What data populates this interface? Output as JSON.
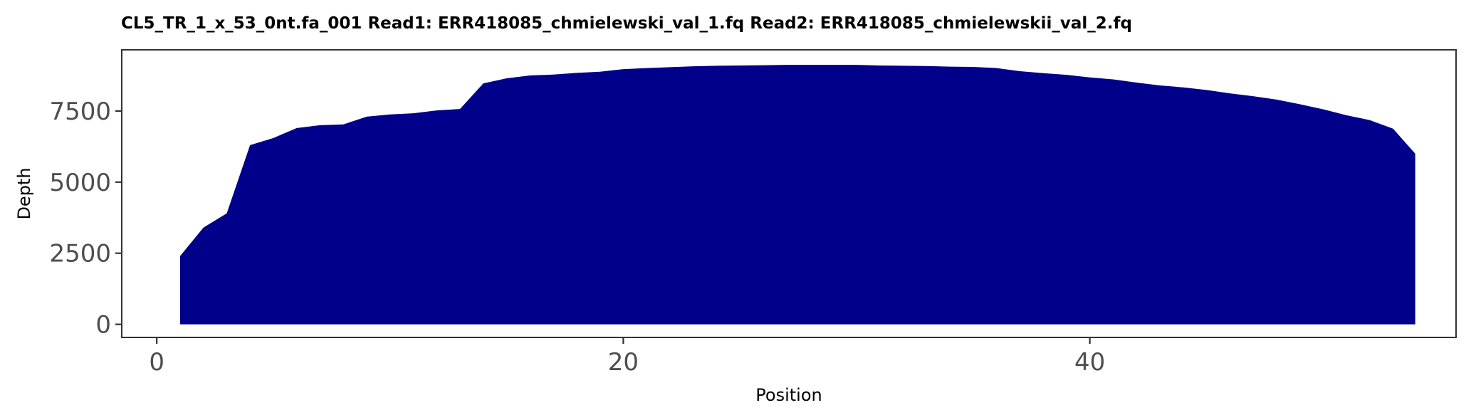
{
  "chart_data": {
    "type": "area",
    "title": "CL5_TR_1_x_53_0nt.fa_001   Read1: ERR418085_chmielewski_val_1.fq   Read2: ERR418085_chmielewskii_val_2.fq",
    "xlabel": "Position",
    "ylabel": "Depth",
    "xlim": [
      -1.5,
      55.7
    ],
    "ylim": [
      -460,
      9650
    ],
    "x_ticks": [
      0,
      20,
      40
    ],
    "x_tick_labels": [
      "0",
      "20",
      "40"
    ],
    "y_ticks": [
      0,
      2500,
      5000,
      7500
    ],
    "y_tick_labels": [
      "0",
      "2500",
      "5000",
      "7500"
    ],
    "grid": false,
    "legend": "none",
    "fill_color": "#00008B",
    "series": [
      {
        "x": [
          1,
          2,
          3,
          4,
          5,
          6,
          7,
          8,
          9,
          10,
          11,
          12,
          13,
          14,
          15,
          16,
          17,
          18,
          19,
          20,
          21,
          22,
          23,
          24,
          25,
          26,
          27,
          28,
          29,
          30,
          31,
          32,
          33,
          34,
          35,
          36,
          37,
          38,
          39,
          40,
          41,
          42,
          43,
          44,
          45,
          46,
          47,
          48,
          49,
          50,
          51,
          52,
          53
        ],
        "values": [
          2400,
          3400,
          3900,
          6300,
          6550,
          6900,
          7000,
          7030,
          7300,
          7380,
          7420,
          7520,
          7570,
          8470,
          8650,
          8750,
          8780,
          8840,
          8880,
          8970,
          9010,
          9040,
          9070,
          9090,
          9100,
          9110,
          9120,
          9120,
          9120,
          9120,
          9100,
          9090,
          9080,
          9060,
          9050,
          9010,
          8900,
          8830,
          8770,
          8680,
          8610,
          8500,
          8400,
          8330,
          8240,
          8120,
          8020,
          7900,
          7740,
          7560,
          7350,
          7180,
          6880
        ]
      }
    ],
    "tail": {
      "x": 53.95,
      "value": 6000
    }
  }
}
